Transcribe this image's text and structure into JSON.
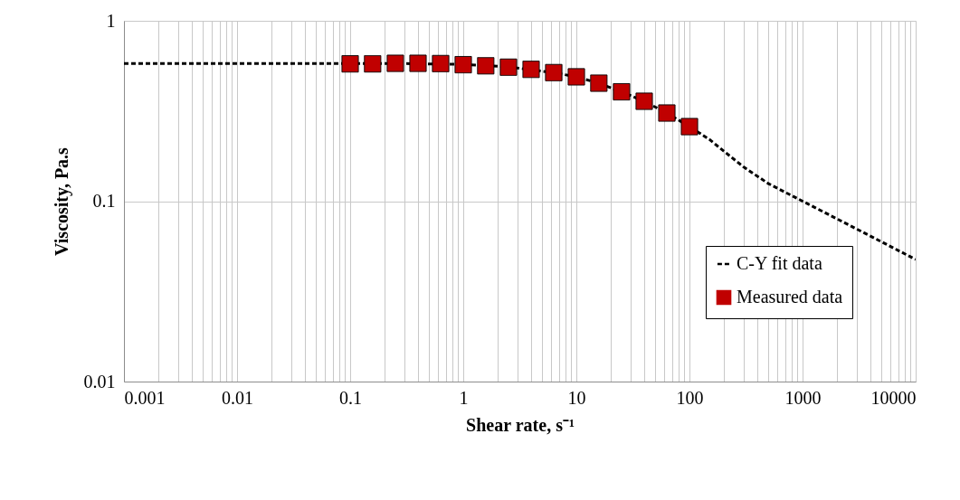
{
  "chart_data": {
    "type": "line",
    "xlabel": "Shear rate, s⁻¹",
    "ylabel": "Viscosity, Pa.s",
    "log": "xy",
    "grid": true,
    "legend": "bottom right",
    "xlim": [
      0.001,
      10000
    ],
    "ylim": [
      0.01,
      1
    ],
    "xticks": [
      0.001,
      0.01,
      0.1,
      1,
      10,
      100,
      1000,
      10000
    ],
    "yticks": [
      0.01,
      0.1,
      1
    ],
    "series": [
      {
        "name": "C-Y fit data",
        "line_style": "dashed",
        "marker": "none",
        "color": "#000000",
        "x": [
          0.001,
          0.01,
          0.1,
          0.251,
          1,
          2.51,
          6.31,
          10,
          15.8,
          25.1,
          39.8,
          63.1,
          100,
          150,
          200,
          300,
          500,
          1000,
          2000,
          5000,
          10000
        ],
        "values": [
          0.58,
          0.58,
          0.579,
          0.58,
          0.573,
          0.555,
          0.516,
          0.489,
          0.451,
          0.404,
          0.358,
          0.308,
          0.259,
          0.22,
          0.19,
          0.155,
          0.125,
          0.1,
          0.08,
          0.0595,
          0.0475
        ]
      },
      {
        "name": "Measured data",
        "type": "scatter",
        "marker": "square",
        "color": "#c00000",
        "x": [
          0.1,
          0.158,
          0.251,
          0.398,
          0.631,
          1,
          1.58,
          2.51,
          3.98,
          6.31,
          10,
          15.8,
          25.1,
          39.8,
          63.1,
          100
        ],
        "values": [
          0.577,
          0.577,
          0.581,
          0.581,
          0.579,
          0.571,
          0.563,
          0.553,
          0.538,
          0.516,
          0.489,
          0.451,
          0.404,
          0.358,
          0.308,
          0.259
        ]
      }
    ]
  }
}
